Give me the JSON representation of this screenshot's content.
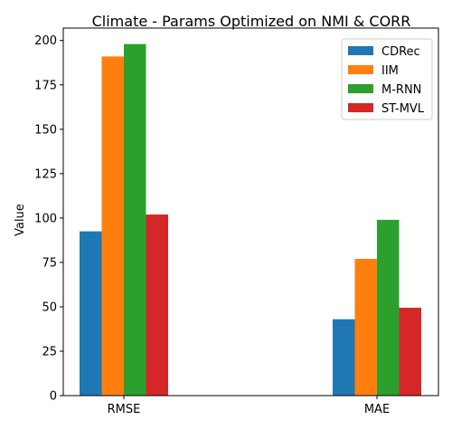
{
  "chart_data": {
    "type": "bar",
    "title": "Climate - Params Optimized on NMI & CORR",
    "xlabel": "",
    "ylabel": "Value",
    "categories": [
      "RMSE",
      "MAE"
    ],
    "ylim": [
      0,
      207
    ],
    "yticks": [
      0,
      25,
      50,
      75,
      100,
      125,
      150,
      175,
      200
    ],
    "grid": false,
    "legend_position": "top-right",
    "series": [
      {
        "name": "CDRec",
        "color": "#1f77b4",
        "values": [
          92.5,
          43
        ]
      },
      {
        "name": "IIM",
        "color": "#ff7f0e",
        "values": [
          191,
          77
        ]
      },
      {
        "name": "M-RNN",
        "color": "#2ca02c",
        "values": [
          198,
          99
        ]
      },
      {
        "name": "ST-MVL",
        "color": "#d62728",
        "values": [
          102,
          49.5
        ]
      }
    ]
  }
}
